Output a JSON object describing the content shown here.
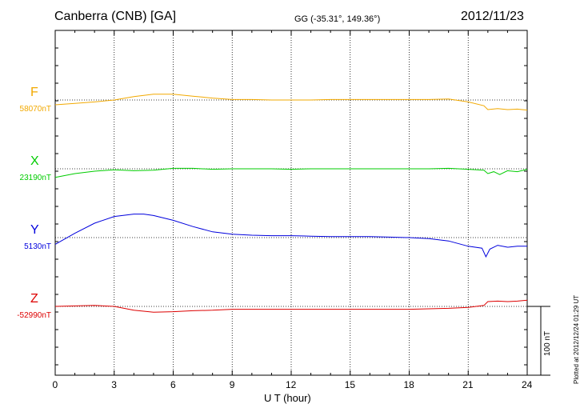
{
  "header": {
    "station": "Canberra (CNB)  [GA]",
    "coords": "GG (-35.31°, 149.36°)",
    "date": "2012/11/23"
  },
  "footer": {
    "plotted": "Plotted at 2012/12/24 01:29 UT",
    "scale_label": "100 nT"
  },
  "colors": {
    "F": "#f2a900",
    "X": "#00cc00",
    "Y": "#0000dd",
    "Z": "#dd0000"
  },
  "chart_data": {
    "type": "line",
    "xlabel": "U T (hour)",
    "xlim": [
      0,
      24
    ],
    "xticks": [
      "0",
      "3",
      "6",
      "9",
      "12",
      "15",
      "18",
      "21",
      "24"
    ],
    "grid": true,
    "scale_bar_nT": 100,
    "series": [
      {
        "name": "F",
        "baseline_label": "58070nT",
        "baseline_nT": 58070,
        "x": [
          0,
          1,
          2,
          3,
          4,
          5,
          6,
          7,
          8,
          9,
          10,
          11,
          12,
          13,
          14,
          15,
          16,
          17,
          18,
          19,
          20,
          21,
          21.8,
          22,
          22.5,
          23,
          23.5,
          24
        ],
        "y": [
          58060,
          58063,
          58066,
          58070,
          58077,
          58082,
          58082,
          58078,
          58074,
          58071,
          58071,
          58070,
          58070,
          58070,
          58071,
          58071,
          58071,
          58071,
          58071,
          58071,
          58072,
          58066,
          58058,
          58050,
          58052,
          58050,
          58051,
          58049
        ]
      },
      {
        "name": "X",
        "baseline_label": "23190nT",
        "baseline_nT": 23190,
        "x": [
          0,
          1,
          2,
          3,
          4,
          5,
          6,
          7,
          8,
          9,
          10,
          11,
          12,
          13,
          14,
          15,
          16,
          17,
          18,
          19,
          20,
          21,
          21.8,
          22,
          22.3,
          22.6,
          23,
          23.5,
          24
        ],
        "y": [
          23172,
          23180,
          23185,
          23188,
          23186,
          23187,
          23191,
          23191,
          23189,
          23190,
          23190,
          23190,
          23189,
          23190,
          23190,
          23190,
          23190,
          23190,
          23190,
          23190,
          23191,
          23189,
          23187,
          23180,
          23184,
          23178,
          23186,
          23184,
          23189
        ]
      },
      {
        "name": "Y",
        "baseline_label": "5130nT",
        "baseline_nT": 5130,
        "x": [
          0,
          1,
          2,
          3,
          4,
          4.5,
          5,
          6,
          7,
          8,
          9,
          10,
          11,
          12,
          13,
          14,
          15,
          16,
          17,
          18,
          19,
          20,
          21,
          21.7,
          21.9,
          22.1,
          22.5,
          23,
          23.5,
          24
        ],
        "y": [
          5116,
          5139,
          5160,
          5174,
          5179,
          5179,
          5176,
          5166,
          5153,
          5142,
          5137,
          5135,
          5134,
          5134,
          5133,
          5132,
          5132,
          5132,
          5131,
          5130,
          5128,
          5123,
          5112,
          5108,
          5090,
          5106,
          5114,
          5110,
          5112,
          5112
        ]
      },
      {
        "name": "Z",
        "baseline_label": "-52990nT",
        "baseline_nT": -52990,
        "x": [
          0,
          1,
          2,
          3,
          4,
          5,
          6,
          7,
          8,
          9,
          10,
          11,
          12,
          13,
          14,
          15,
          16,
          17,
          18,
          19,
          20,
          21,
          21.8,
          22,
          22.5,
          23,
          23.5,
          24
        ],
        "y": [
          -52990,
          -52989,
          -52988,
          -52990,
          -52998,
          -53002,
          -53001,
          -52999,
          -52998,
          -52996,
          -52996,
          -52996,
          -52996,
          -52996,
          -52996,
          -52996,
          -52996,
          -52996,
          -52996,
          -52995,
          -52994,
          -52992,
          -52988,
          -52980,
          -52979,
          -52980,
          -52979,
          -52977
        ]
      }
    ]
  }
}
